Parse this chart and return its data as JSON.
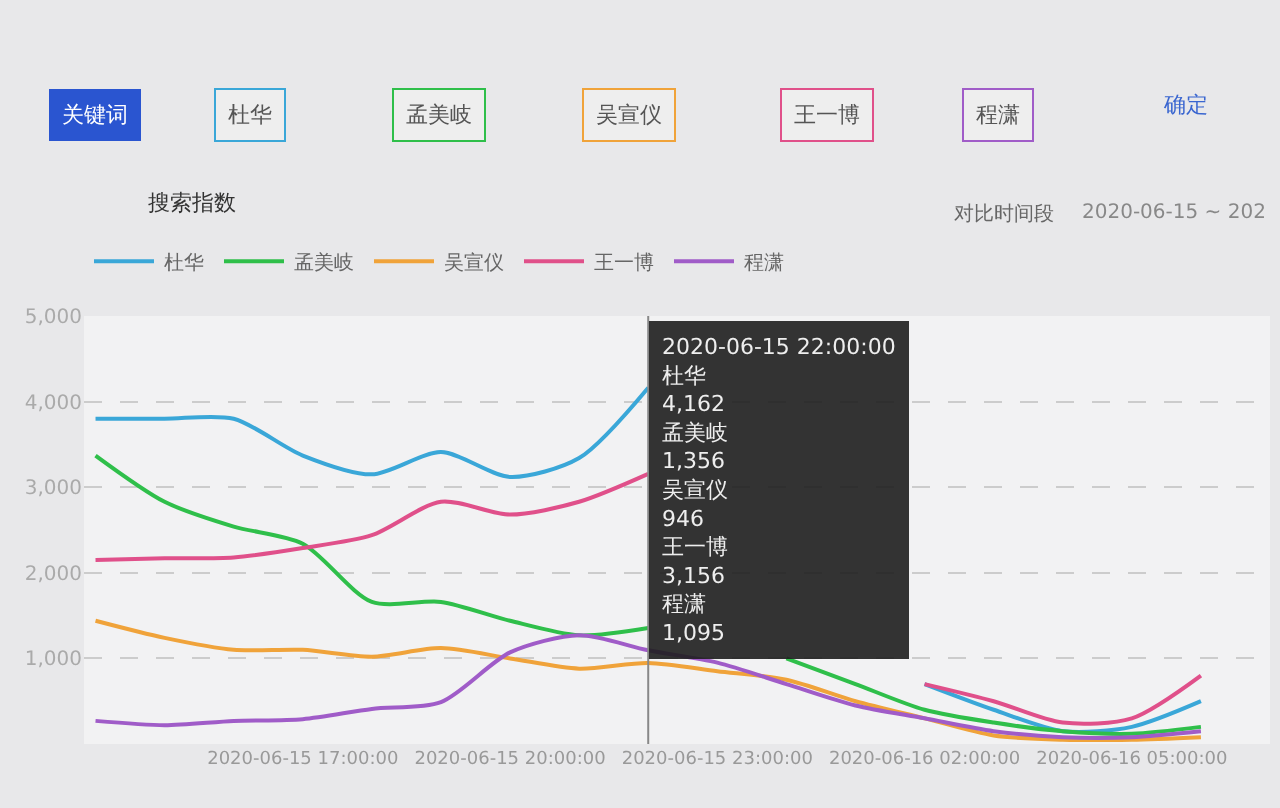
{
  "chart_data": {
    "type": "line",
    "x": [
      "2020-06-15T14:00",
      "2020-06-15T15:00",
      "2020-06-15T16:00",
      "2020-06-15T17:00",
      "2020-06-15T18:00",
      "2020-06-15T19:00",
      "2020-06-15T20:00",
      "2020-06-15T21:00",
      "2020-06-15T22:00",
      "2020-06-15T23:00",
      "2020-06-16T00:00",
      "2020-06-16T01:00",
      "2020-06-16T02:00",
      "2020-06-16T03:00",
      "2020-06-16T04:00",
      "2020-06-16T05:00",
      "2020-06-16T06:00"
    ],
    "series": [
      {
        "name": "杜华",
        "color": "#3aa7d8",
        "values": [
          3800,
          3800,
          3800,
          3370,
          3150,
          3410,
          3120,
          3340,
          4162,
          null,
          null,
          null,
          700,
          400,
          150,
          200,
          500
        ]
      },
      {
        "name": "孟美岐",
        "color": "#2fbf4a",
        "values": [
          3370,
          2830,
          2540,
          2340,
          1660,
          1660,
          1440,
          1270,
          1356,
          null,
          1000,
          700,
          400,
          250,
          150,
          120,
          200
        ]
      },
      {
        "name": "吴宣仪",
        "color": "#f0a33a",
        "values": [
          1440,
          1240,
          1100,
          1100,
          1020,
          1120,
          1000,
          880,
          946,
          850,
          750,
          500,
          300,
          100,
          50,
          50,
          80
        ]
      },
      {
        "name": "王一博",
        "color": "#e0508a",
        "values": [
          2150,
          2170,
          2180,
          2290,
          2440,
          2830,
          2680,
          2830,
          3156,
          null,
          null,
          null,
          700,
          500,
          250,
          300,
          800
        ]
      },
      {
        "name": "程潇",
        "color": "#a05cc8",
        "values": [
          270,
          220,
          270,
          290,
          410,
          490,
          1070,
          1270,
          1095,
          950,
          700,
          450,
          300,
          150,
          80,
          80,
          150
        ]
      }
    ],
    "ylim": [
      0,
      5000
    ],
    "yticks": [
      {
        "value": 1000,
        "label": "1,000"
      },
      {
        "value": 2000,
        "label": "2,000"
      },
      {
        "value": 3000,
        "label": "3,000"
      },
      {
        "value": 4000,
        "label": "4,000"
      },
      {
        "value": 5000,
        "label": "5,000"
      }
    ],
    "xlim": [
      "2020-06-15T13:50",
      "2020-06-16T07:00"
    ],
    "xticks": [
      {
        "value": "2020-06-15T17:00",
        "label": "2020-06-15 17:00:00"
      },
      {
        "value": "2020-06-15T20:00",
        "label": "2020-06-15 20:00:00"
      },
      {
        "value": "2020-06-15T23:00",
        "label": "2020-06-15 23:00:00"
      },
      {
        "value": "2020-06-16T02:00",
        "label": "2020-06-16 02:00:00"
      },
      {
        "value": "2020-06-16T05:00",
        "label": "2020-06-16 05:00:00"
      }
    ],
    "ref_lines": [
      {
        "axis": "x",
        "value": "2020-06-15T22:00",
        "color": "#888888"
      }
    ],
    "grid": "y",
    "legend": "top left",
    "marker": "none",
    "line_style": "solid",
    "annotations": [
      "关键词",
      "杜华",
      "孟美岐",
      "吴宣仪",
      "王一博",
      "程潇",
      "确定",
      "搜索指数",
      "对比时间段",
      "2020-06-15 ~ 202",
      "2020-06-15 22:00:00\n杜华\n4,162\n孟美岐\n1,356\n吴宣仪\n946\n王一博\n3,156\n程潇\n1,095"
    ]
  }
}
